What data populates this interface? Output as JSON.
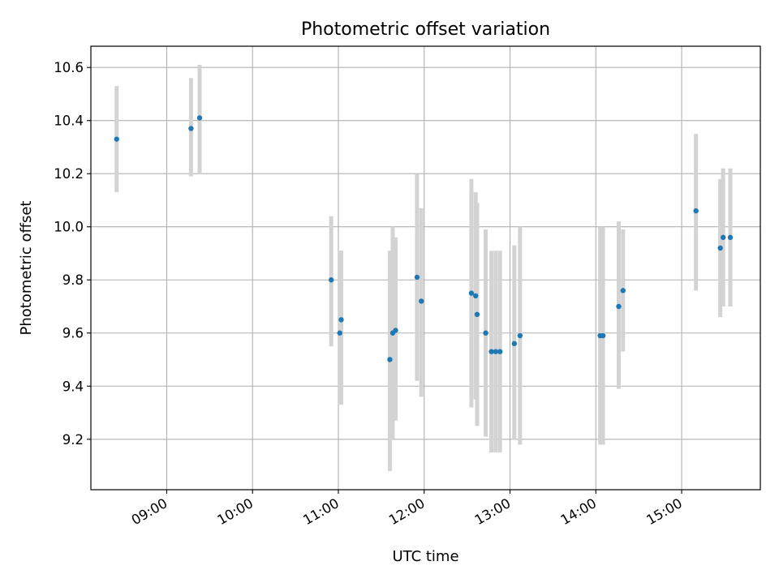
{
  "chart_data": {
    "type": "scatter",
    "title": "Photometric offset variation",
    "xlabel": "UTC time",
    "ylabel": "Photometric offset",
    "x_ticks": [
      "09:00",
      "10:00",
      "11:00",
      "12:00",
      "13:00",
      "14:00",
      "15:00"
    ],
    "y_ticks": [
      "9.2",
      "9.4",
      "9.6",
      "9.8",
      "10.0",
      "10.2",
      "10.4",
      "10.6"
    ],
    "xlim": [
      "08:07",
      "15:55"
    ],
    "ylim": [
      9.01,
      10.68
    ],
    "grid": true,
    "marker_color": "#1f77b4",
    "errorbar_color": "#d3d3d3",
    "points": [
      {
        "x": "08:25",
        "y": 10.33,
        "lo": 10.13,
        "hi": 10.53
      },
      {
        "x": "09:17",
        "y": 10.37,
        "lo": 10.19,
        "hi": 10.56
      },
      {
        "x": "09:23",
        "y": 10.41,
        "lo": 10.2,
        "hi": 10.61
      },
      {
        "x": "10:55",
        "y": 9.8,
        "lo": 9.55,
        "hi": 10.04
      },
      {
        "x": "11:01",
        "y": 9.6,
        "lo": 9.33,
        "hi": 9.91
      },
      {
        "x": "11:02",
        "y": 9.65,
        "lo": 9.33,
        "hi": 9.91
      },
      {
        "x": "11:36",
        "y": 9.5,
        "lo": 9.08,
        "hi": 9.91
      },
      {
        "x": "11:38",
        "y": 9.6,
        "lo": 9.2,
        "hi": 10.0
      },
      {
        "x": "11:40",
        "y": 9.61,
        "lo": 9.27,
        "hi": 9.96
      },
      {
        "x": "11:55",
        "y": 9.81,
        "lo": 9.42,
        "hi": 10.2
      },
      {
        "x": "11:58",
        "y": 9.72,
        "lo": 9.36,
        "hi": 10.07
      },
      {
        "x": "12:33",
        "y": 9.75,
        "lo": 9.32,
        "hi": 10.18
      },
      {
        "x": "12:36",
        "y": 9.74,
        "lo": 9.35,
        "hi": 10.13
      },
      {
        "x": "12:37",
        "y": 9.67,
        "lo": 9.25,
        "hi": 10.09
      },
      {
        "x": "12:43",
        "y": 9.6,
        "lo": 9.21,
        "hi": 9.99
      },
      {
        "x": "12:47",
        "y": 9.53,
        "lo": 9.15,
        "hi": 9.91
      },
      {
        "x": "12:50",
        "y": 9.53,
        "lo": 9.15,
        "hi": 9.91
      },
      {
        "x": "12:53",
        "y": 9.53,
        "lo": 9.15,
        "hi": 9.91
      },
      {
        "x": "13:03",
        "y": 9.56,
        "lo": 9.2,
        "hi": 9.93
      },
      {
        "x": "13:07",
        "y": 9.59,
        "lo": 9.18,
        "hi": 10.0
      },
      {
        "x": "14:03",
        "y": 9.59,
        "lo": 9.18,
        "hi": 10.0
      },
      {
        "x": "14:05",
        "y": 9.59,
        "lo": 9.18,
        "hi": 10.0
      },
      {
        "x": "14:16",
        "y": 9.7,
        "lo": 9.39,
        "hi": 10.02
      },
      {
        "x": "14:19",
        "y": 9.76,
        "lo": 9.53,
        "hi": 9.99
      },
      {
        "x": "15:10",
        "y": 10.06,
        "lo": 9.76,
        "hi": 10.35
      },
      {
        "x": "15:27",
        "y": 9.92,
        "lo": 9.66,
        "hi": 10.18
      },
      {
        "x": "15:29",
        "y": 9.96,
        "lo": 9.7,
        "hi": 10.22
      },
      {
        "x": "15:34",
        "y": 9.96,
        "lo": 9.7,
        "hi": 10.22
      }
    ]
  }
}
